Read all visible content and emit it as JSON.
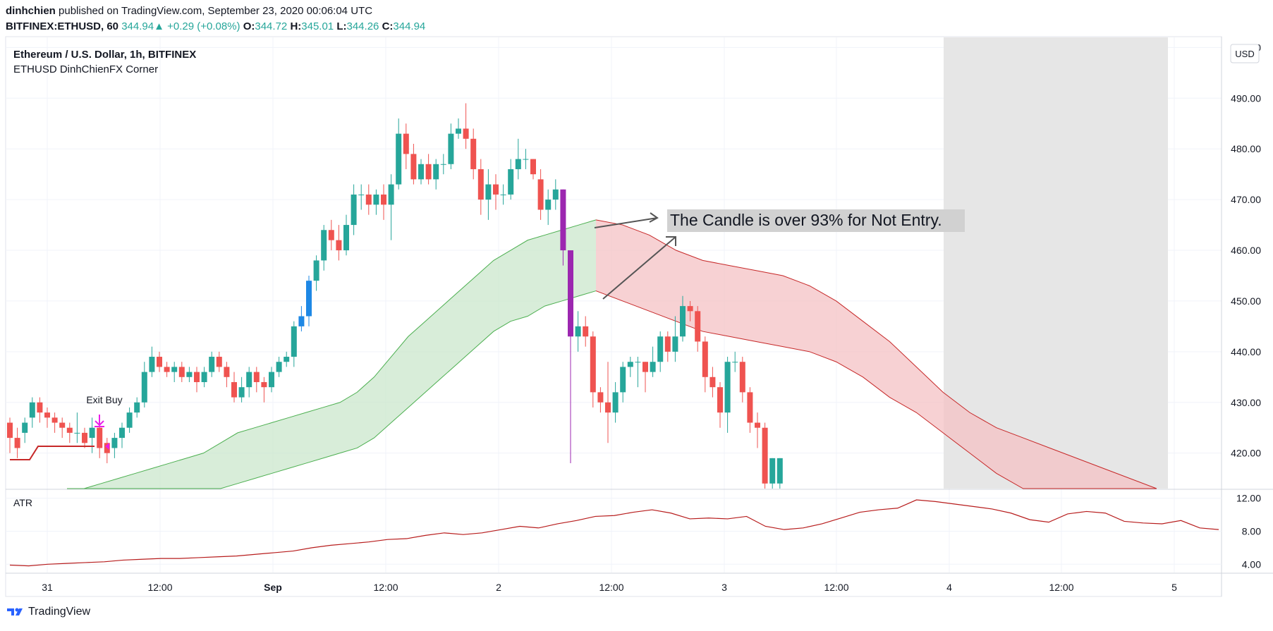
{
  "header": {
    "author": "dinhchien",
    "published_text": "published on TradingView.com, September 23, 2020 00:06:04 UTC",
    "symbol": "BITFINEX:ETHUSD, 60",
    "last": "344.94",
    "change_arrow": "▲",
    "change": "+0.29 (+0.08%)",
    "o_label": "O:",
    "o_value": "344.72",
    "h_label": "H:",
    "h_value": "345.01",
    "l_label": "L:",
    "l_value": "344.26",
    "c_label": "C:",
    "c_value": "344.94"
  },
  "chart_data": {
    "type": "candlestick",
    "title": "Ethereum / U.S. Dollar, 1h, BITFINEX",
    "subtitle": "ETHUSD DinhChienFX Corner",
    "currency_button": "USD",
    "colors": {
      "up": "#26a69a",
      "down": "#ef5350",
      "band_up": "#c8e6c9",
      "band_down": "#f4c2c4",
      "band_line_up": "#4caf50",
      "band_line_down": "#c62828",
      "atr_line": "#b71c1c",
      "annotation_bg": "#d1d1d1",
      "marker": "#e91ee9"
    },
    "ylim": [
      413,
      502
    ],
    "y_ticks": [
      "500.00",
      "490.00",
      "480.00",
      "470.00",
      "460.00",
      "450.00",
      "440.00",
      "430.00",
      "420.00"
    ],
    "x_ticks": [
      "31",
      "12:00",
      "Sep",
      "12:00",
      "2",
      "12:00",
      "3",
      "12:00",
      "4",
      "12:00",
      "5"
    ],
    "candles": [
      [
        426,
        423,
        427,
        420
      ],
      [
        423,
        421,
        425,
        419
      ],
      [
        424,
        426,
        427,
        422
      ],
      [
        427,
        430,
        431,
        425
      ],
      [
        430,
        428,
        431,
        426
      ],
      [
        428,
        427,
        429,
        425
      ],
      [
        427,
        426,
        428,
        424
      ],
      [
        426,
        425,
        427,
        423
      ],
      [
        425,
        424,
        426,
        422
      ],
      [
        424,
        424,
        428,
        422
      ],
      [
        424,
        422,
        425,
        421
      ],
      [
        423,
        425,
        427,
        420
      ],
      [
        425,
        421,
        426,
        419
      ],
      [
        422,
        420,
        423,
        418
      ],
      [
        421,
        423,
        424,
        419
      ],
      [
        423,
        425,
        426,
        421
      ],
      [
        425,
        428,
        429,
        424
      ],
      [
        428,
        430,
        431,
        427
      ],
      [
        430,
        436,
        438,
        429
      ],
      [
        436,
        439,
        441,
        435
      ],
      [
        439,
        437,
        440,
        436
      ],
      [
        437,
        436,
        438,
        435
      ],
      [
        436,
        437,
        438,
        434
      ],
      [
        437,
        435,
        438,
        434
      ],
      [
        435,
        436,
        437,
        434
      ],
      [
        436,
        434,
        437,
        432
      ],
      [
        434,
        436,
        437,
        433
      ],
      [
        436,
        439,
        440,
        435
      ],
      [
        439,
        437,
        440,
        436
      ],
      [
        437,
        435,
        438,
        433
      ],
      [
        434,
        431,
        436,
        430
      ],
      [
        431,
        433,
        435,
        430
      ],
      [
        433,
        436,
        437,
        431
      ],
      [
        436,
        434,
        437,
        432
      ],
      [
        434,
        433,
        435,
        430
      ],
      [
        433,
        436,
        437,
        432
      ],
      [
        436,
        438,
        439,
        435
      ],
      [
        438,
        439,
        440,
        437
      ],
      [
        439,
        445,
        446,
        437
      ],
      [
        445,
        447,
        449,
        444
      ],
      [
        447,
        454,
        455,
        445
      ],
      [
        454,
        458,
        459,
        452
      ],
      [
        458,
        464,
        465,
        456
      ],
      [
        464,
        462,
        466,
        460
      ],
      [
        462,
        460,
        465,
        458
      ],
      [
        460,
        465,
        467,
        459
      ],
      [
        465,
        471,
        473,
        463
      ],
      [
        471,
        471,
        473,
        468
      ],
      [
        471,
        469,
        473,
        467
      ],
      [
        469,
        471,
        472,
        467
      ],
      [
        471,
        469,
        473,
        466
      ],
      [
        469,
        473,
        475,
        462
      ],
      [
        473,
        483,
        486,
        472
      ],
      [
        483,
        479,
        485,
        476
      ],
      [
        479,
        474,
        481,
        473
      ],
      [
        474,
        477,
        478,
        473
      ],
      [
        477,
        474,
        479,
        473
      ],
      [
        474,
        477,
        478,
        472
      ],
      [
        477,
        477,
        479,
        475
      ],
      [
        477,
        483,
        485,
        476
      ],
      [
        483,
        484,
        486,
        482
      ],
      [
        484,
        482,
        489,
        480
      ],
      [
        482,
        476,
        484,
        474
      ],
      [
        476,
        470,
        478,
        467
      ],
      [
        470,
        473,
        476,
        466
      ],
      [
        473,
        471,
        475,
        468
      ],
      [
        471,
        471,
        473,
        469
      ],
      [
        471,
        476,
        478,
        470
      ],
      [
        476,
        478,
        482,
        474
      ],
      [
        478,
        478,
        480,
        476
      ],
      [
        478,
        475,
        478,
        474
      ],
      [
        474,
        468,
        476,
        466
      ],
      [
        468,
        470,
        472,
        465
      ],
      [
        470,
        472,
        474,
        468
      ],
      [
        472,
        460,
        472,
        457
      ],
      [
        460,
        443,
        460,
        418
      ],
      [
        443,
        445,
        448,
        440
      ],
      [
        445,
        443,
        447,
        441
      ],
      [
        443,
        432,
        444,
        429
      ],
      [
        432,
        430,
        433,
        428
      ],
      [
        430,
        428,
        438,
        422
      ],
      [
        428,
        432,
        434,
        426
      ],
      [
        432,
        437,
        438,
        430
      ],
      [
        437,
        438,
        439,
        435
      ],
      [
        438,
        438,
        439,
        433
      ],
      [
        438,
        436,
        438,
        432
      ],
      [
        436,
        438,
        441,
        435
      ],
      [
        438,
        443,
        444,
        436
      ],
      [
        443,
        440,
        444,
        438
      ],
      [
        440,
        443,
        447,
        438
      ],
      [
        443,
        449,
        451,
        442
      ],
      [
        449,
        448,
        450,
        446
      ],
      [
        448,
        442,
        449,
        440
      ],
      [
        442,
        435,
        443,
        432
      ],
      [
        435,
        433,
        437,
        431
      ],
      [
        433,
        428,
        434,
        425
      ],
      [
        428,
        438,
        439,
        424
      ],
      [
        438,
        438,
        440,
        436
      ],
      [
        438,
        432,
        439,
        430
      ],
      [
        432,
        426,
        433,
        424
      ],
      [
        426,
        425,
        428,
        421
      ],
      [
        425,
        414,
        426,
        412
      ],
      [
        414,
        419,
        419,
        413
      ],
      [
        414,
        419,
        419,
        413
      ]
    ],
    "bands": {
      "upper_green": [
        412,
        413,
        414,
        415,
        416,
        417,
        418,
        419,
        420,
        422,
        424,
        425,
        426,
        427,
        428,
        429,
        430,
        432,
        435,
        439,
        443,
        446,
        449,
        452,
        455,
        458,
        460,
        462,
        463,
        464,
        465,
        466
      ],
      "lower_green": [
        404,
        405,
        406,
        407,
        408,
        409,
        410,
        411,
        412,
        413,
        414,
        415,
        416,
        417,
        418,
        419,
        420,
        421,
        423,
        426,
        429,
        432,
        435,
        438,
        441,
        444,
        446,
        447,
        449,
        450,
        451,
        452
      ],
      "upper_red": [
        466,
        465,
        463,
        460,
        458,
        457,
        456,
        455,
        453,
        450,
        446,
        442,
        437,
        432,
        428,
        425,
        423,
        421,
        419,
        417,
        415,
        413
      ],
      "lower_red": [
        452,
        450,
        448,
        446,
        444,
        443,
        442,
        441,
        440,
        438,
        435,
        431,
        428,
        424,
        420,
        416,
        413,
        411,
        409,
        406,
        404,
        402
      ]
    },
    "exit_marker_label": "Exit Buy",
    "annotation": "The Candle is over 93% for Not Entry.",
    "atr": {
      "label": "ATR",
      "ylim": [
        3,
        13
      ],
      "y_ticks": [
        "12.00",
        "8.00",
        "4.00"
      ],
      "values": [
        3.9,
        3.8,
        4.0,
        4.1,
        4.2,
        4.3,
        4.5,
        4.6,
        4.7,
        4.7,
        4.8,
        4.9,
        5.0,
        5.2,
        5.4,
        5.6,
        6.0,
        6.3,
        6.5,
        6.7,
        7.0,
        7.1,
        7.5,
        7.8,
        7.6,
        7.8,
        8.2,
        8.6,
        8.4,
        8.9,
        9.3,
        9.8,
        9.9,
        10.3,
        10.6,
        10.2,
        9.5,
        9.6,
        9.5,
        9.8,
        8.6,
        8.2,
        8.4,
        8.9,
        9.6,
        10.3,
        10.6,
        10.8,
        11.8,
        11.6,
        11.3,
        11.0,
        10.7,
        10.2,
        9.4,
        9.1,
        10.1,
        10.4,
        10.2,
        9.2,
        9.0,
        8.9,
        9.3,
        8.4,
        8.2
      ]
    }
  },
  "footer": {
    "brand": "TradingView"
  }
}
